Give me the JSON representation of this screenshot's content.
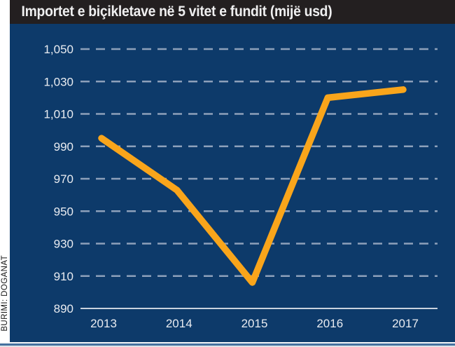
{
  "header": {
    "title": "Importet e biçikletave në 5 vitet e fundit  (mijë usd)"
  },
  "source": {
    "label": "BURIMI: DOGANAT"
  },
  "chart_data": {
    "type": "line",
    "title": "Importet e biçikletave në 5 vitet e fundit (mijë usd)",
    "categories": [
      "2013",
      "2014",
      "2015",
      "2016",
      "2017"
    ],
    "series": [
      {
        "name": "Importet e biçikletave (mijë usd)",
        "values": [
          995,
          963,
          906,
          1020,
          1025
        ]
      }
    ],
    "xlabel": "",
    "ylabel": "",
    "ylim": [
      890,
      1050
    ],
    "ytick_step": 20,
    "ytick_labels": [
      "890",
      "910",
      "930",
      "950",
      "970",
      "990",
      "1,010",
      "1,030",
      "1,050"
    ],
    "grid": "horizontal-dashed",
    "legend": "none",
    "colors": {
      "line": "#f9a51b",
      "panel_background": "#0d3a6a",
      "grid_dash": "#8da0ba",
      "baseline": "#c9d3de",
      "axis_text": "#e9ecf1",
      "title_bar": "#231f20",
      "title_text": "#efeff0"
    }
  }
}
